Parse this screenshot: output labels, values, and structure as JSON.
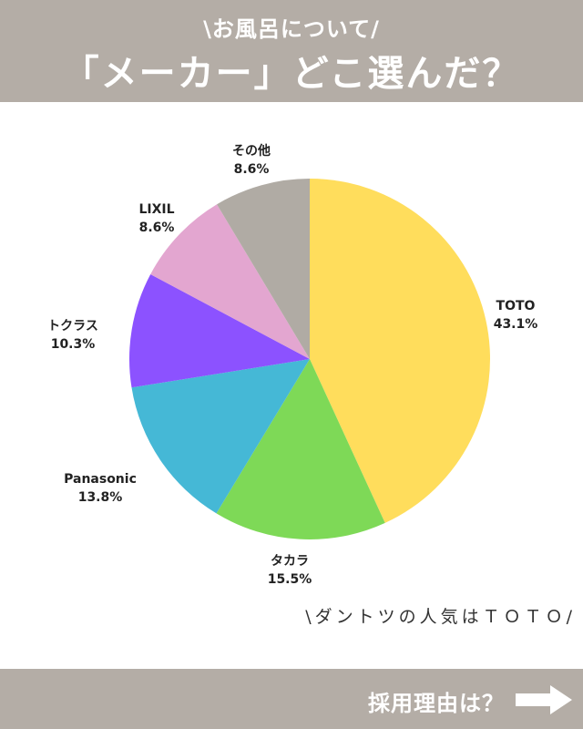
{
  "header": {
    "subtitle": "\\お風呂について/",
    "title": "「メーカー」どこ選んだ？"
  },
  "chart_data": {
    "type": "pie",
    "slices": [
      {
        "label": "TOTO",
        "value": 43.1,
        "display": "43.1%",
        "color": "#ffdd5c"
      },
      {
        "label": "タカラ",
        "value": 15.5,
        "display": "15.5%",
        "color": "#7ed957"
      },
      {
        "label": "Panasonic",
        "value": 13.8,
        "display": "13.8%",
        "color": "#45b8d6"
      },
      {
        "label": "トクラス",
        "value": 10.3,
        "display": "10.3%",
        "color": "#8c52ff"
      },
      {
        "label": "LIXIL",
        "value": 8.6,
        "display": "8.6%",
        "color": "#e3a6d0"
      },
      {
        "label": "その他",
        "value": 8.6,
        "display": "8.6%",
        "color": "#b0aba4"
      }
    ]
  },
  "caption": "\\ダントツの人気はＴＯＴＯ/",
  "footer": {
    "next_label": "採用理由は？"
  },
  "icons": {
    "next": "arrow-right-icon"
  }
}
